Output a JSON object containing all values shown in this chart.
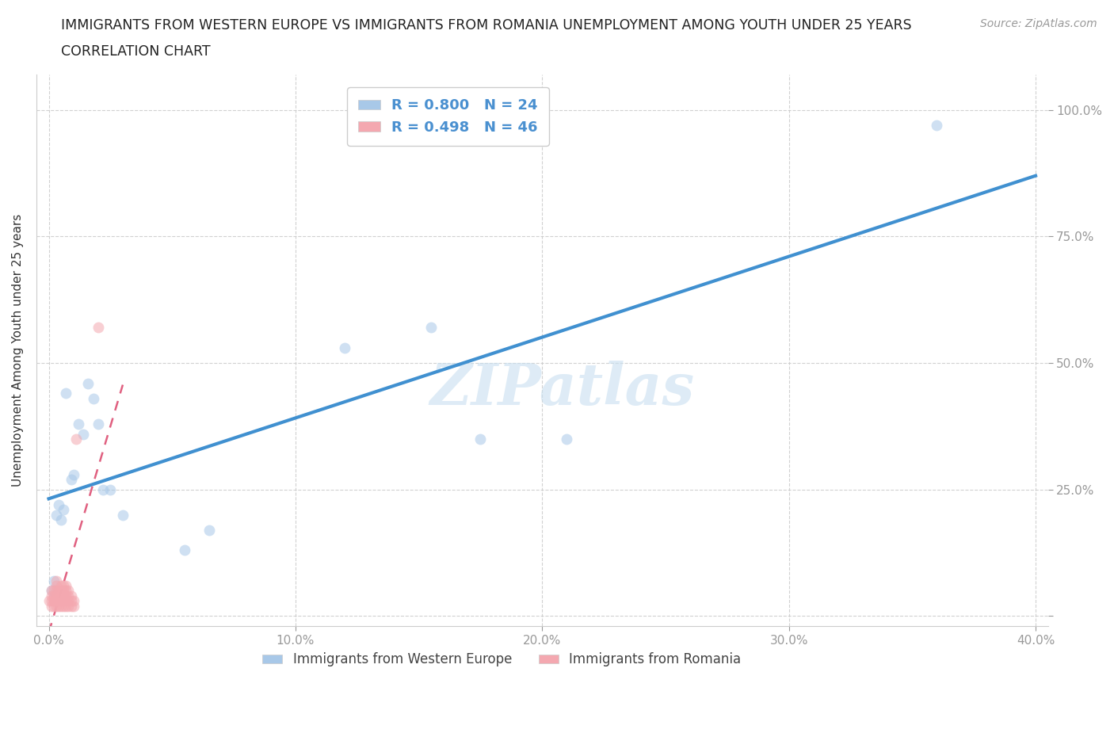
{
  "title_line1": "IMMIGRANTS FROM WESTERN EUROPE VS IMMIGRANTS FROM ROMANIA UNEMPLOYMENT AMONG YOUTH UNDER 25 YEARS",
  "title_line2": "CORRELATION CHART",
  "source": "Source: ZipAtlas.com",
  "ylabel": "Unemployment Among Youth under 25 years",
  "watermark": "ZIPatlas",
  "blue_R": 0.8,
  "blue_N": 24,
  "pink_R": 0.498,
  "pink_N": 46,
  "blue_color": "#a8c8e8",
  "pink_color": "#f4a8b0",
  "blue_line_color": "#4090d0",
  "pink_line_color": "#e06080",
  "axis_label_color": "#4a90d0",
  "background_color": "#ffffff",
  "grid_color": "#cccccc",
  "xlim": [
    -0.005,
    0.405
  ],
  "ylim": [
    -0.02,
    1.07
  ],
  "x_ticks": [
    0.0,
    0.1,
    0.2,
    0.3,
    0.4
  ],
  "x_tick_labels": [
    "0.0%",
    "10.0%",
    "20.0%",
    "30.0%",
    "40.0%"
  ],
  "y_ticks": [
    0.0,
    0.25,
    0.5,
    0.75,
    1.0
  ],
  "y_tick_labels_right": [
    "",
    "25.0%",
    "50.0%",
    "75.0%",
    "100.0%"
  ],
  "blue_x": [
    0.001,
    0.002,
    0.003,
    0.004,
    0.005,
    0.006,
    0.007,
    0.009,
    0.01,
    0.012,
    0.014,
    0.016,
    0.018,
    0.02,
    0.022,
    0.025,
    0.03,
    0.055,
    0.065,
    0.12,
    0.155,
    0.175,
    0.21,
    0.36
  ],
  "blue_y": [
    0.05,
    0.07,
    0.2,
    0.22,
    0.19,
    0.21,
    0.44,
    0.27,
    0.28,
    0.38,
    0.36,
    0.46,
    0.43,
    0.38,
    0.25,
    0.25,
    0.2,
    0.13,
    0.17,
    0.53,
    0.57,
    0.35,
    0.35,
    0.97
  ],
  "pink_x": [
    0.0,
    0.001,
    0.001,
    0.001,
    0.001,
    0.002,
    0.002,
    0.002,
    0.002,
    0.002,
    0.003,
    0.003,
    0.003,
    0.003,
    0.003,
    0.003,
    0.004,
    0.004,
    0.004,
    0.004,
    0.005,
    0.005,
    0.005,
    0.005,
    0.005,
    0.006,
    0.006,
    0.006,
    0.006,
    0.006,
    0.007,
    0.007,
    0.007,
    0.007,
    0.007,
    0.008,
    0.008,
    0.008,
    0.008,
    0.009,
    0.009,
    0.009,
    0.01,
    0.01,
    0.011,
    0.02
  ],
  "pink_y": [
    0.03,
    0.02,
    0.03,
    0.04,
    0.05,
    0.02,
    0.03,
    0.03,
    0.04,
    0.05,
    0.02,
    0.03,
    0.04,
    0.05,
    0.06,
    0.07,
    0.02,
    0.03,
    0.04,
    0.05,
    0.02,
    0.03,
    0.04,
    0.05,
    0.06,
    0.02,
    0.03,
    0.04,
    0.05,
    0.06,
    0.02,
    0.03,
    0.04,
    0.05,
    0.06,
    0.02,
    0.03,
    0.04,
    0.05,
    0.02,
    0.03,
    0.04,
    0.02,
    0.03,
    0.35,
    0.57
  ],
  "legend_label_blue": "Immigrants from Western Europe",
  "legend_label_pink": "Immigrants from Romania",
  "marker_size": 100,
  "marker_alpha": 0.55,
  "title_fontsize": 12.5,
  "subtitle_fontsize": 12.5,
  "axis_label_fontsize": 11,
  "tick_fontsize": 11,
  "legend_fontsize": 13,
  "watermark_fontsize": 52,
  "watermark_color": "#c8dff0",
  "watermark_alpha": 0.6
}
